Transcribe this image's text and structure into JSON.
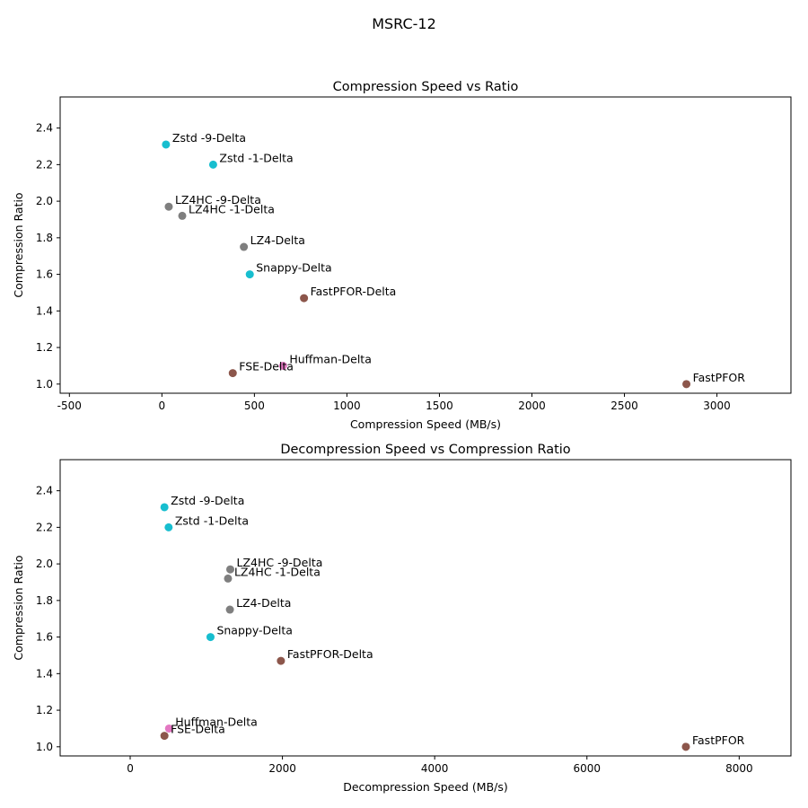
{
  "suptitle": "MSRC-12",
  "chart_data": [
    {
      "type": "scatter",
      "title": "Compression Speed vs Ratio",
      "xlabel": "Compression Speed (MB/s)",
      "ylabel": "Compression Ratio",
      "xlim": [
        -550,
        3400
      ],
      "ylim": [
        0.95,
        2.57
      ],
      "xticks": [
        -500,
        0,
        500,
        1000,
        1500,
        2000,
        2500,
        3000
      ],
      "yticks": [
        1.0,
        1.2,
        1.4,
        1.6,
        1.8,
        2.0,
        2.2,
        2.4
      ],
      "points": [
        {
          "label": "Zstd -9-Delta",
          "x": 22,
          "y": 2.31,
          "color": "#17becf"
        },
        {
          "label": "Zstd -1-Delta",
          "x": 277,
          "y": 2.2,
          "color": "#17becf"
        },
        {
          "label": "LZ4HC -9-Delta",
          "x": 37,
          "y": 1.97,
          "color": "#7f7f7f"
        },
        {
          "label": "LZ4HC -1-Delta",
          "x": 110,
          "y": 1.92,
          "color": "#7f7f7f"
        },
        {
          "label": "LZ4-Delta",
          "x": 443,
          "y": 1.75,
          "color": "#7f7f7f"
        },
        {
          "label": "Snappy-Delta",
          "x": 475,
          "y": 1.6,
          "color": "#17becf"
        },
        {
          "label": "FastPFOR-Delta",
          "x": 768,
          "y": 1.47,
          "color": "#8c564b"
        },
        {
          "label": "Huffman-Delta",
          "x": 655,
          "y": 1.1,
          "color": "#e377c2"
        },
        {
          "label": "FSE-Delta",
          "x": 383,
          "y": 1.06,
          "color": "#8c564b"
        },
        {
          "label": "FastPFOR",
          "x": 2835,
          "y": 1.0,
          "color": "#8c564b"
        }
      ]
    },
    {
      "type": "scatter",
      "title": "Decompression Speed vs Compression Ratio",
      "xlabel": "Decompression Speed (MB/s)",
      "ylabel": "Compression Ratio",
      "xlim": [
        -920,
        8680
      ],
      "ylim": [
        0.95,
        2.57
      ],
      "xticks": [
        0,
        2000,
        4000,
        6000,
        8000
      ],
      "yticks": [
        1.0,
        1.2,
        1.4,
        1.6,
        1.8,
        2.0,
        2.2,
        2.4
      ],
      "points": [
        {
          "label": "Zstd -9-Delta",
          "x": 450,
          "y": 2.31,
          "color": "#17becf"
        },
        {
          "label": "Zstd -1-Delta",
          "x": 505,
          "y": 2.2,
          "color": "#17becf"
        },
        {
          "label": "LZ4HC -9-Delta",
          "x": 1315,
          "y": 1.97,
          "color": "#7f7f7f"
        },
        {
          "label": "LZ4HC -1-Delta",
          "x": 1285,
          "y": 1.92,
          "color": "#7f7f7f"
        },
        {
          "label": "LZ4-Delta",
          "x": 1310,
          "y": 1.75,
          "color": "#7f7f7f"
        },
        {
          "label": "Snappy-Delta",
          "x": 1055,
          "y": 1.6,
          "color": "#17becf"
        },
        {
          "label": "FastPFOR-Delta",
          "x": 1980,
          "y": 1.47,
          "color": "#8c564b"
        },
        {
          "label": "Huffman-Delta",
          "x": 510,
          "y": 1.1,
          "color": "#e377c2"
        },
        {
          "label": "FSE-Delta",
          "x": 450,
          "y": 1.06,
          "color": "#8c564b"
        },
        {
          "label": "FastPFOR",
          "x": 7300,
          "y": 1.0,
          "color": "#8c564b"
        }
      ]
    }
  ]
}
